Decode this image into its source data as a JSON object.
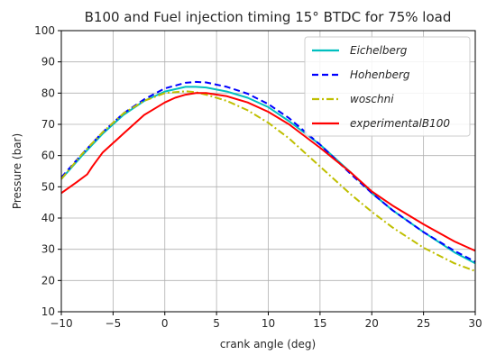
{
  "chart_data": {
    "type": "line",
    "title": "B100 and Fuel injection timing 15° BTDC for 75% load",
    "xlabel": "crank angle (deg)",
    "ylabel": "Pressure (bar)",
    "xlim": [
      -10,
      30
    ],
    "ylim": [
      10,
      100
    ],
    "xticks": [
      "−10",
      "−5",
      "0",
      "5",
      "10",
      "15",
      "20",
      "25",
      "30"
    ],
    "yticks": [
      "10",
      "20",
      "30",
      "40",
      "50",
      "60",
      "70",
      "80",
      "90",
      "100"
    ],
    "grid": true,
    "legend_position": "top-right",
    "series": [
      {
        "name": "Eichelberg",
        "color": "#00bfbf",
        "style": "solid",
        "x": [
          -10,
          -8,
          -6,
          -4,
          -2,
          0,
          2,
          3,
          4,
          6,
          8,
          10,
          12,
          15,
          18,
          20,
          22,
          25,
          28,
          30
        ],
        "y": [
          52.5,
          60,
          67,
          73,
          77.5,
          80.5,
          82,
          82,
          81.8,
          80.5,
          78.5,
          75.5,
          71,
          63.5,
          54.5,
          48,
          42.5,
          35.5,
          29,
          25.5
        ]
      },
      {
        "name": "Hohenberg",
        "color": "#0000ff",
        "style": "dashed",
        "x": [
          -10,
          -8,
          -6,
          -4,
          -2,
          0,
          2,
          3,
          4,
          6,
          8,
          10,
          12,
          15,
          18,
          20,
          22,
          25,
          28,
          30
        ],
        "y": [
          53,
          60.5,
          67.5,
          73.5,
          78,
          81.5,
          83.3,
          83.6,
          83.4,
          82,
          79.8,
          76.5,
          72,
          63.5,
          54,
          48,
          42.5,
          35.5,
          29.5,
          26
        ]
      },
      {
        "name": "woschni",
        "color": "#bfbf00",
        "style": "dashdot",
        "x": [
          -10,
          -8,
          -6,
          -4,
          -2,
          0,
          2,
          3,
          4,
          6,
          8,
          10,
          12,
          15,
          18,
          20,
          22,
          25,
          28,
          30
        ],
        "y": [
          52.5,
          60.5,
          67.5,
          73.5,
          77.5,
          80,
          80.6,
          80.3,
          79.5,
          77.5,
          74.5,
          70.5,
          65.5,
          56.5,
          47.5,
          42,
          37,
          30.5,
          25.5,
          23
        ]
      },
      {
        "name": "experimentalB100",
        "color": "#ff0000",
        "style": "solid",
        "x": [
          -10,
          -8.5,
          -7.5,
          -7,
          -6,
          -5,
          -4,
          -3,
          -2,
          -1,
          0,
          1,
          2,
          3,
          4,
          6,
          8,
          10,
          12,
          15,
          18,
          20,
          22,
          25,
          28,
          30
        ],
        "y": [
          48,
          51.5,
          54,
          56.5,
          61,
          64,
          67,
          70,
          73,
          75,
          77,
          78.5,
          79.5,
          80,
          80,
          79,
          77,
          74,
          70,
          62.5,
          54.5,
          48.5,
          44,
          38,
          32.5,
          29.5
        ]
      }
    ]
  }
}
